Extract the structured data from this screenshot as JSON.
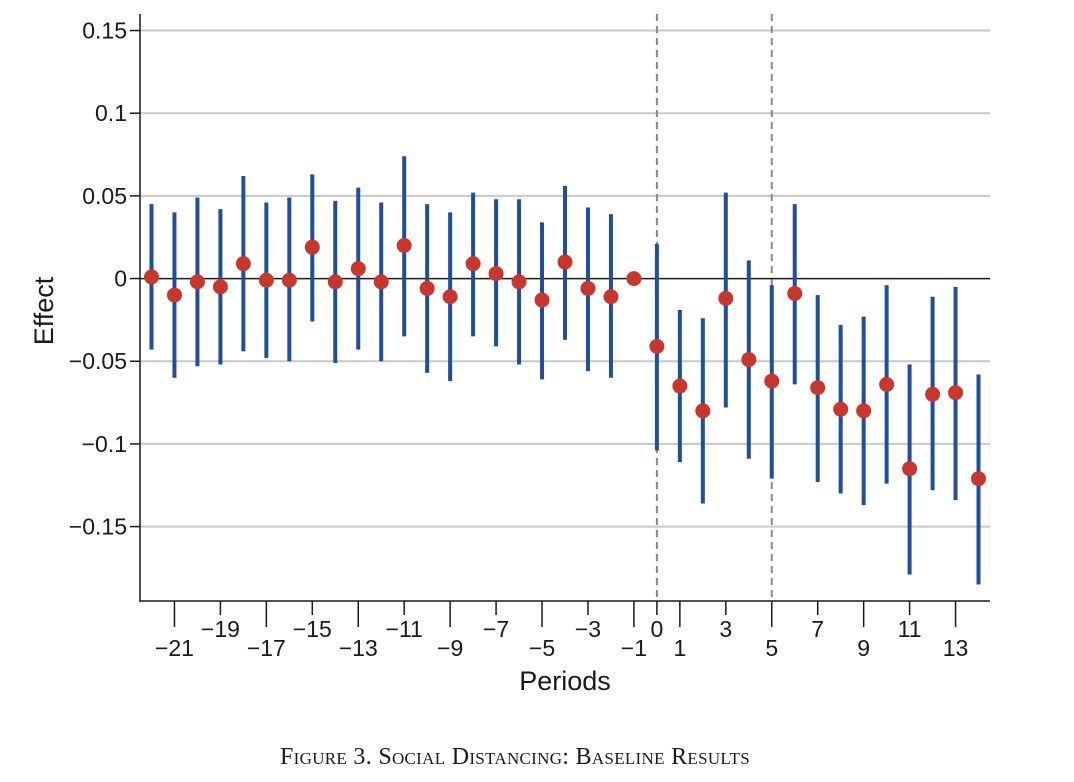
{
  "caption": "Figure 3. Social Distancing: Baseline Results",
  "chart_data": {
    "type": "scatter",
    "title": "",
    "xlabel": "Periods",
    "ylabel": "Effect",
    "xlim": [
      -22.5,
      14.5
    ],
    "ylim": [
      -0.195,
      0.16
    ],
    "yticks": [
      {
        "value": 0.15,
        "label": "0.15"
      },
      {
        "value": 0.1,
        "label": "0.1"
      },
      {
        "value": 0.05,
        "label": "0.05"
      },
      {
        "value": 0,
        "label": "0"
      },
      {
        "value": -0.05,
        "label": "−0.05"
      },
      {
        "value": -0.1,
        "label": "−0.1"
      },
      {
        "value": -0.15,
        "label": "−0.15"
      }
    ],
    "xticks_low": [
      {
        "value": -21,
        "label": "−21"
      },
      {
        "value": -17,
        "label": "−17"
      },
      {
        "value": -13,
        "label": "−13"
      },
      {
        "value": -9,
        "label": "−9"
      },
      {
        "value": -5,
        "label": "−5"
      },
      {
        "value": -1,
        "label": "−1"
      },
      {
        "value": 1,
        "label": "1"
      },
      {
        "value": 5,
        "label": "5"
      },
      {
        "value": 9,
        "label": "9"
      },
      {
        "value": 13,
        "label": "13"
      }
    ],
    "xticks_high": [
      {
        "value": -19,
        "label": "−19"
      },
      {
        "value": -15,
        "label": "−15"
      },
      {
        "value": -11,
        "label": "−11"
      },
      {
        "value": -7,
        "label": "−7"
      },
      {
        "value": -3,
        "label": "−3"
      },
      {
        "value": 0,
        "label": "0"
      },
      {
        "value": 3,
        "label": "3"
      },
      {
        "value": 7,
        "label": "7"
      },
      {
        "value": 11,
        "label": "11"
      }
    ],
    "reference_lines": [
      0,
      5
    ],
    "grid": true,
    "colors": {
      "point": "#c8372d",
      "ci": "#1f4e9a",
      "grid": "#c8c8c8",
      "refline": "#8a8a8a"
    },
    "points": [
      {
        "x": -22,
        "y": 0.001,
        "lo": -0.043,
        "hi": 0.045
      },
      {
        "x": -21,
        "y": -0.01,
        "lo": -0.06,
        "hi": 0.04
      },
      {
        "x": -20,
        "y": -0.002,
        "lo": -0.053,
        "hi": 0.049
      },
      {
        "x": -19,
        "y": -0.005,
        "lo": -0.052,
        "hi": 0.042
      },
      {
        "x": -18,
        "y": 0.009,
        "lo": -0.044,
        "hi": 0.062
      },
      {
        "x": -17,
        "y": -0.001,
        "lo": -0.048,
        "hi": 0.046
      },
      {
        "x": -16,
        "y": -0.001,
        "lo": -0.05,
        "hi": 0.049
      },
      {
        "x": -15,
        "y": 0.019,
        "lo": -0.026,
        "hi": 0.063
      },
      {
        "x": -14,
        "y": -0.002,
        "lo": -0.051,
        "hi": 0.047
      },
      {
        "x": -13,
        "y": 0.006,
        "lo": -0.043,
        "hi": 0.055
      },
      {
        "x": -12,
        "y": -0.002,
        "lo": -0.05,
        "hi": 0.046
      },
      {
        "x": -11,
        "y": 0.02,
        "lo": -0.035,
        "hi": 0.074
      },
      {
        "x": -10,
        "y": -0.006,
        "lo": -0.057,
        "hi": 0.045
      },
      {
        "x": -9,
        "y": -0.011,
        "lo": -0.062,
        "hi": 0.04
      },
      {
        "x": -8,
        "y": 0.009,
        "lo": -0.035,
        "hi": 0.052
      },
      {
        "x": -7,
        "y": 0.003,
        "lo": -0.041,
        "hi": 0.048
      },
      {
        "x": -6,
        "y": -0.002,
        "lo": -0.052,
        "hi": 0.048
      },
      {
        "x": -5,
        "y": -0.013,
        "lo": -0.061,
        "hi": 0.034
      },
      {
        "x": -4,
        "y": 0.01,
        "lo": -0.037,
        "hi": 0.056
      },
      {
        "x": -3,
        "y": -0.006,
        "lo": -0.056,
        "hi": 0.043
      },
      {
        "x": -2,
        "y": -0.011,
        "lo": -0.06,
        "hi": 0.039
      },
      {
        "x": -1,
        "y": 0.0,
        "lo": 0.0,
        "hi": 0.0
      },
      {
        "x": 0,
        "y": -0.041,
        "lo": -0.104,
        "hi": 0.021
      },
      {
        "x": 1,
        "y": -0.065,
        "lo": -0.111,
        "hi": -0.019
      },
      {
        "x": 2,
        "y": -0.08,
        "lo": -0.136,
        "hi": -0.024
      },
      {
        "x": 3,
        "y": -0.012,
        "lo": -0.078,
        "hi": 0.052
      },
      {
        "x": 4,
        "y": -0.049,
        "lo": -0.109,
        "hi": 0.011
      },
      {
        "x": 5,
        "y": -0.062,
        "lo": -0.121,
        "hi": -0.004
      },
      {
        "x": 6,
        "y": -0.009,
        "lo": -0.064,
        "hi": 0.045
      },
      {
        "x": 7,
        "y": -0.066,
        "lo": -0.123,
        "hi": -0.01
      },
      {
        "x": 8,
        "y": -0.079,
        "lo": -0.13,
        "hi": -0.028
      },
      {
        "x": 9,
        "y": -0.08,
        "lo": -0.137,
        "hi": -0.023
      },
      {
        "x": 10,
        "y": -0.064,
        "lo": -0.124,
        "hi": -0.004
      },
      {
        "x": 11,
        "y": -0.115,
        "lo": -0.179,
        "hi": -0.052
      },
      {
        "x": 12,
        "y": -0.07,
        "lo": -0.128,
        "hi": -0.011
      },
      {
        "x": 13,
        "y": -0.069,
        "lo": -0.134,
        "hi": -0.005
      },
      {
        "x": 14,
        "y": -0.121,
        "lo": -0.185,
        "hi": -0.058
      }
    ]
  }
}
